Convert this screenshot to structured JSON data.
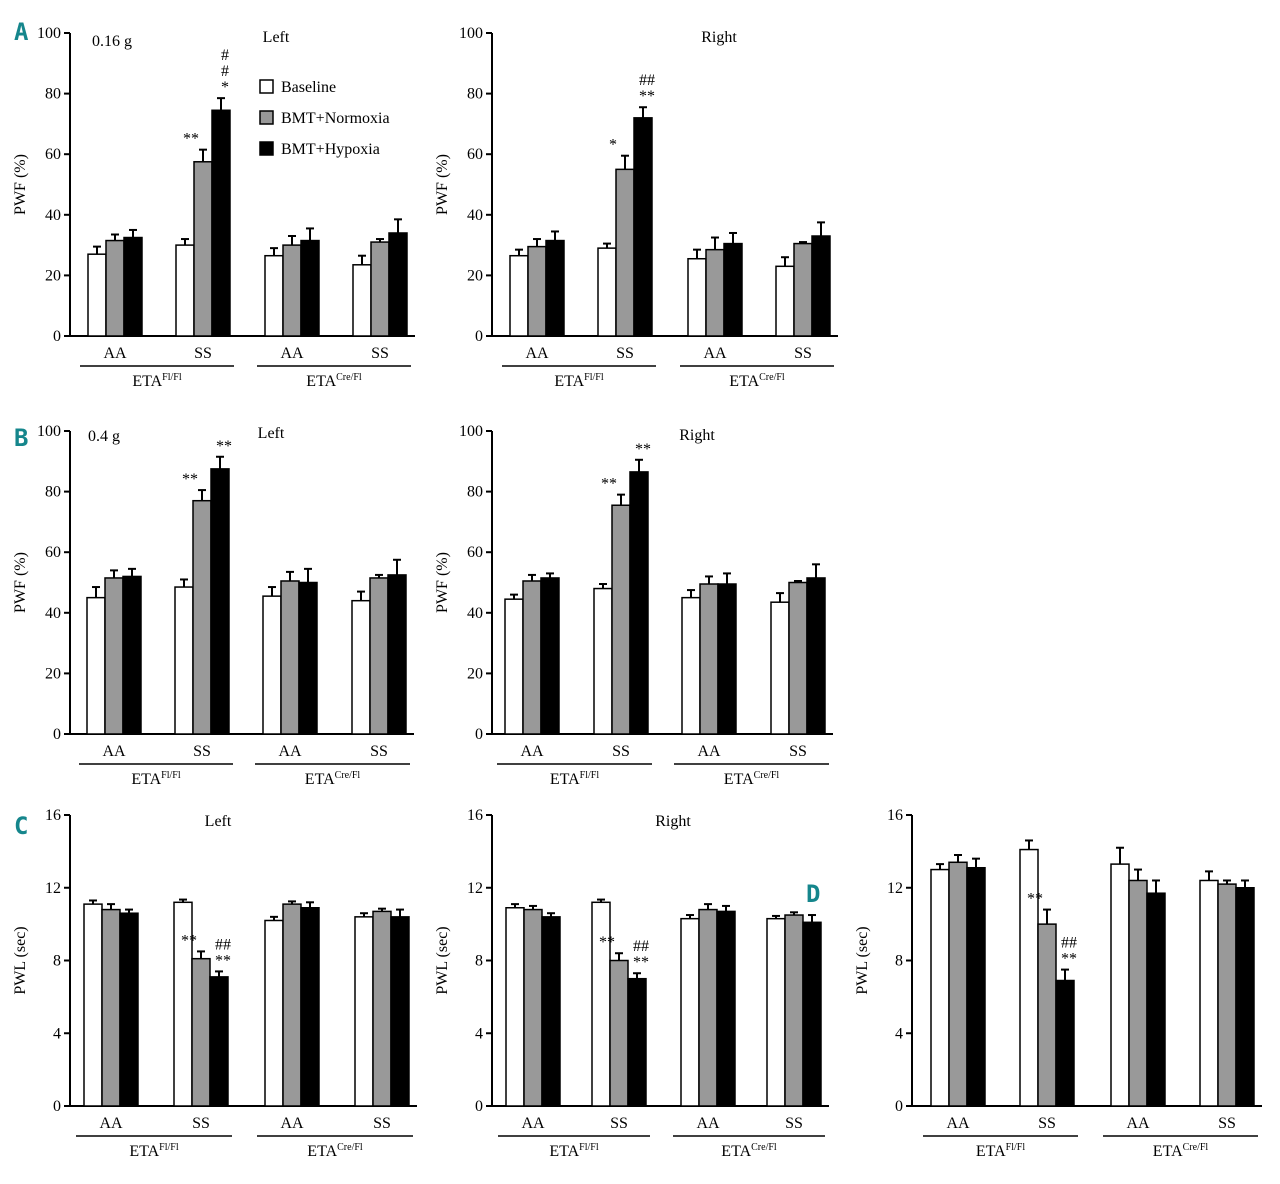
{
  "colors": {
    "baseline": "#ffffff",
    "normoxia": "#999999",
    "hypoxia": "#000000",
    "letter": "#15868c"
  },
  "panel_letters": {
    "A": "A",
    "B": "B",
    "C": "C",
    "D": "D"
  },
  "legend": [
    "Baseline",
    "BMT+Normoxia",
    "BMT+Hypoxia"
  ],
  "chart_data": [
    {
      "id": "A-left",
      "type": "bar",
      "title": "Left",
      "corner_label": "0.16 g",
      "ylabel": "PWF (%)",
      "ylim": [
        0,
        100
      ],
      "yticks": [
        0,
        20,
        40,
        60,
        80,
        100
      ],
      "categories": [
        "AA",
        "SS",
        "AA",
        "SS"
      ],
      "groups": [
        {
          "name": "ETA",
          "sup": "Fl/Fl"
        },
        {
          "name": "ETA",
          "sup": "Cre/Fl"
        }
      ],
      "series": [
        {
          "name": "Baseline",
          "values": [
            27,
            30,
            26.5,
            23.5
          ],
          "errors": [
            2.5,
            2,
            2.5,
            3
          ]
        },
        {
          "name": "BMT+Normoxia",
          "values": [
            31.5,
            57.5,
            30,
            31
          ],
          "errors": [
            2,
            4,
            3,
            1
          ]
        },
        {
          "name": "BMT+Hypoxia",
          "values": [
            32.5,
            74.5,
            31.5,
            34
          ],
          "errors": [
            2.5,
            4,
            4,
            4.5
          ]
        }
      ],
      "annotations": [
        {
          "cat": 1,
          "series": 1,
          "lines": [
            "**"
          ]
        },
        {
          "cat": 1,
          "series": 2,
          "lines": [
            "#",
            "#",
            "*"
          ]
        }
      ]
    },
    {
      "id": "A-right",
      "type": "bar",
      "title": "Right",
      "ylabel": "PWF (%)",
      "ylim": [
        0,
        100
      ],
      "yticks": [
        0,
        20,
        40,
        60,
        80,
        100
      ],
      "categories": [
        "AA",
        "SS",
        "AA",
        "SS"
      ],
      "groups": [
        {
          "name": "ETA",
          "sup": "Fl/Fl"
        },
        {
          "name": "ETA",
          "sup": "Cre/Fl"
        }
      ],
      "series": [
        {
          "name": "Baseline",
          "values": [
            26.5,
            29,
            25.5,
            23
          ],
          "errors": [
            2,
            1.5,
            3,
            3
          ]
        },
        {
          "name": "BMT+Normoxia",
          "values": [
            29.5,
            55,
            28.5,
            30.5
          ],
          "errors": [
            2.5,
            4.5,
            4,
            0.5
          ]
        },
        {
          "name": "BMT+Hypoxia",
          "values": [
            31.5,
            72,
            30.5,
            33
          ],
          "errors": [
            3,
            3.5,
            3.5,
            4.5
          ]
        }
      ],
      "annotations": [
        {
          "cat": 1,
          "series": 1,
          "lines": [
            "*"
          ]
        },
        {
          "cat": 1,
          "series": 2,
          "lines": [
            "##",
            "**"
          ]
        }
      ]
    },
    {
      "id": "B-left",
      "type": "bar",
      "title": "Left",
      "corner_label": "0.4 g",
      "ylabel": "PWF (%)",
      "ylim": [
        0,
        100
      ],
      "yticks": [
        0,
        20,
        40,
        60,
        80,
        100
      ],
      "categories": [
        "AA",
        "SS",
        "AA",
        "SS"
      ],
      "groups": [
        {
          "name": "ETA",
          "sup": "Fl/Fl"
        },
        {
          "name": "ETA",
          "sup": "Cre/Fl"
        }
      ],
      "series": [
        {
          "name": "Baseline",
          "values": [
            45,
            48.5,
            45.5,
            44
          ],
          "errors": [
            3.5,
            2.5,
            3,
            3
          ]
        },
        {
          "name": "BMT+Normoxia",
          "values": [
            51.5,
            77,
            50.5,
            51.5
          ],
          "errors": [
            2.5,
            3.5,
            3,
            1
          ]
        },
        {
          "name": "BMT+Hypoxia",
          "values": [
            52,
            87.5,
            50,
            52.5
          ],
          "errors": [
            2.5,
            4,
            4.5,
            5
          ]
        }
      ],
      "annotations": [
        {
          "cat": 1,
          "series": 1,
          "lines": [
            "**"
          ]
        },
        {
          "cat": 1,
          "series": 2,
          "lines": [
            "**"
          ]
        }
      ]
    },
    {
      "id": "B-right",
      "type": "bar",
      "title": "Right",
      "ylabel": "PWF (%)",
      "ylim": [
        0,
        100
      ],
      "yticks": [
        0,
        20,
        40,
        60,
        80,
        100
      ],
      "categories": [
        "AA",
        "SS",
        "AA",
        "SS"
      ],
      "groups": [
        {
          "name": "ETA",
          "sup": "Fl/Fl"
        },
        {
          "name": "ETA",
          "sup": "Cre/Fl"
        }
      ],
      "series": [
        {
          "name": "Baseline",
          "values": [
            44.5,
            48,
            45,
            43.5
          ],
          "errors": [
            1.5,
            1.5,
            2.5,
            3
          ]
        },
        {
          "name": "BMT+Normoxia",
          "values": [
            50.5,
            75.5,
            49.5,
            50
          ],
          "errors": [
            2,
            3.5,
            2.5,
            0.5
          ]
        },
        {
          "name": "BMT+Hypoxia",
          "values": [
            51.5,
            86.5,
            49.5,
            51.5
          ],
          "errors": [
            1.5,
            4,
            3.5,
            4.5
          ]
        }
      ],
      "annotations": [
        {
          "cat": 1,
          "series": 1,
          "lines": [
            "**"
          ]
        },
        {
          "cat": 1,
          "series": 2,
          "lines": [
            "**"
          ]
        }
      ]
    },
    {
      "id": "C-left",
      "type": "bar",
      "title": "Left",
      "ylabel": "PWL (sec)",
      "ylim": [
        0,
        16
      ],
      "yticks": [
        0,
        4,
        8,
        12,
        16
      ],
      "categories": [
        "AA",
        "SS",
        "AA",
        "SS"
      ],
      "groups": [
        {
          "name": "ETA",
          "sup": "Fl/Fl"
        },
        {
          "name": "ETA",
          "sup": "Cre/Fl"
        }
      ],
      "series": [
        {
          "name": "Baseline",
          "values": [
            11.1,
            11.2,
            10.2,
            10.4
          ],
          "errors": [
            0.2,
            0.15,
            0.2,
            0.2
          ]
        },
        {
          "name": "BMT+Normoxia",
          "values": [
            10.8,
            8.1,
            11.1,
            10.7
          ],
          "errors": [
            0.3,
            0.4,
            0.15,
            0.15
          ]
        },
        {
          "name": "BMT+Hypoxia",
          "values": [
            10.6,
            7.1,
            10.9,
            10.4
          ],
          "errors": [
            0.2,
            0.3,
            0.3,
            0.4
          ]
        }
      ],
      "annotations": [
        {
          "cat": 1,
          "series": 1,
          "lines": [
            "**"
          ]
        },
        {
          "cat": 1,
          "series": 2,
          "lines": [
            "##",
            "**"
          ]
        }
      ]
    },
    {
      "id": "C-right",
      "type": "bar",
      "title": "Right",
      "ylabel": "PWL (sec)",
      "ylim": [
        0,
        16
      ],
      "yticks": [
        0,
        4,
        8,
        12,
        16
      ],
      "categories": [
        "AA",
        "SS",
        "AA",
        "SS"
      ],
      "groups": [
        {
          "name": "ETA",
          "sup": "Fl/Fl"
        },
        {
          "name": "ETA",
          "sup": "Cre/Fl"
        }
      ],
      "series": [
        {
          "name": "Baseline",
          "values": [
            10.9,
            11.2,
            10.3,
            10.3
          ],
          "errors": [
            0.2,
            0.15,
            0.2,
            0.15
          ]
        },
        {
          "name": "BMT+Normoxia",
          "values": [
            10.8,
            8.0,
            10.8,
            10.5
          ],
          "errors": [
            0.2,
            0.4,
            0.3,
            0.15
          ]
        },
        {
          "name": "BMT+Hypoxia",
          "values": [
            10.4,
            7.0,
            10.7,
            10.1
          ],
          "errors": [
            0.2,
            0.3,
            0.3,
            0.4
          ]
        }
      ],
      "annotations": [
        {
          "cat": 1,
          "series": 1,
          "lines": [
            "**"
          ]
        },
        {
          "cat": 1,
          "series": 2,
          "lines": [
            "##",
            "**"
          ]
        }
      ]
    },
    {
      "id": "D",
      "type": "bar",
      "title": "",
      "ylabel": "PWL (sec)",
      "ylim": [
        0,
        16
      ],
      "yticks": [
        0,
        4,
        8,
        12,
        16
      ],
      "categories": [
        "AA",
        "SS",
        "AA",
        "SS"
      ],
      "groups": [
        {
          "name": "ETA",
          "sup": "Fl/Fl"
        },
        {
          "name": "ETA",
          "sup": "Cre/Fl"
        }
      ],
      "series": [
        {
          "name": "Baseline",
          "values": [
            13.0,
            14.1,
            13.3,
            12.4
          ],
          "errors": [
            0.3,
            0.5,
            0.9,
            0.5
          ]
        },
        {
          "name": "BMT+Normoxia",
          "values": [
            13.4,
            10.0,
            12.4,
            12.2
          ],
          "errors": [
            0.4,
            0.8,
            0.6,
            0.2
          ]
        },
        {
          "name": "BMT+Hypoxia",
          "values": [
            13.1,
            6.9,
            11.7,
            12.0
          ],
          "errors": [
            0.5,
            0.6,
            0.7,
            0.4
          ]
        }
      ],
      "annotations": [
        {
          "cat": 1,
          "series": 1,
          "lines": [
            "**"
          ]
        },
        {
          "cat": 1,
          "series": 2,
          "lines": [
            "##",
            "**"
          ]
        }
      ]
    }
  ]
}
